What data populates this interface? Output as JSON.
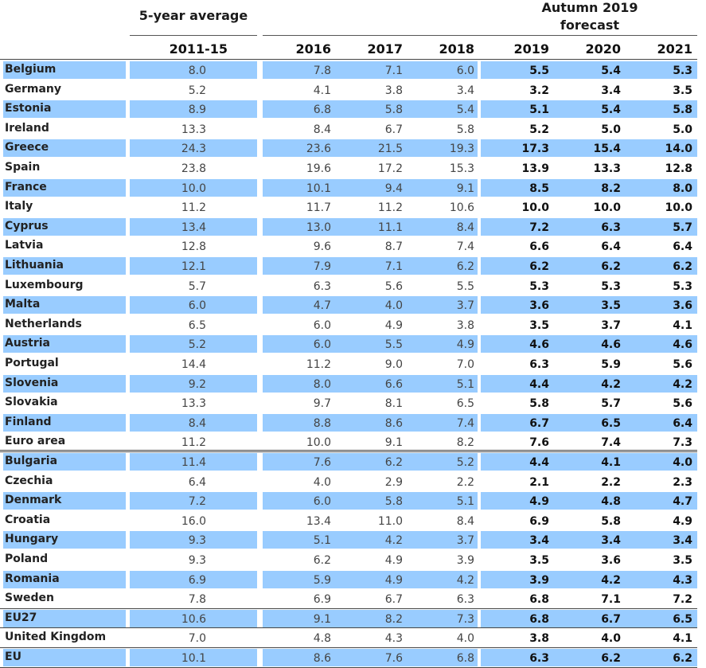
{
  "headers": {
    "five_year": "5-year average",
    "forecast_line1": "Autumn 2019",
    "forecast_line2": "forecast",
    "years": [
      "2011-15",
      "2016",
      "2017",
      "2018",
      "2019",
      "2020",
      "2021"
    ]
  },
  "rows": [
    {
      "country": "Belgium",
      "values": [
        "8.0",
        "7.8",
        "7.1",
        "6.0",
        "5.5",
        "5.4",
        "5.3"
      ],
      "shaded": true
    },
    {
      "country": "Germany",
      "values": [
        "5.2",
        "4.1",
        "3.8",
        "3.4",
        "3.2",
        "3.4",
        "3.5"
      ],
      "shaded": false
    },
    {
      "country": "Estonia",
      "values": [
        "8.9",
        "6.8",
        "5.8",
        "5.4",
        "5.1",
        "5.4",
        "5.8"
      ],
      "shaded": true
    },
    {
      "country": "Ireland",
      "values": [
        "13.3",
        "8.4",
        "6.7",
        "5.8",
        "5.2",
        "5.0",
        "5.0"
      ],
      "shaded": false
    },
    {
      "country": "Greece",
      "values": [
        "24.3",
        "23.6",
        "21.5",
        "19.3",
        "17.3",
        "15.4",
        "14.0"
      ],
      "shaded": true
    },
    {
      "country": "Spain",
      "values": [
        "23.8",
        "19.6",
        "17.2",
        "15.3",
        "13.9",
        "13.3",
        "12.8"
      ],
      "shaded": false
    },
    {
      "country": "France",
      "values": [
        "10.0",
        "10.1",
        "9.4",
        "9.1",
        "8.5",
        "8.2",
        "8.0"
      ],
      "shaded": true
    },
    {
      "country": "Italy",
      "values": [
        "11.2",
        "11.7",
        "11.2",
        "10.6",
        "10.0",
        "10.0",
        "10.0"
      ],
      "shaded": false
    },
    {
      "country": "Cyprus",
      "values": [
        "13.4",
        "13.0",
        "11.1",
        "8.4",
        "7.2",
        "6.3",
        "5.7"
      ],
      "shaded": true
    },
    {
      "country": "Latvia",
      "values": [
        "12.8",
        "9.6",
        "8.7",
        "7.4",
        "6.6",
        "6.4",
        "6.4"
      ],
      "shaded": false
    },
    {
      "country": "Lithuania",
      "values": [
        "12.1",
        "7.9",
        "7.1",
        "6.2",
        "6.2",
        "6.2",
        "6.2"
      ],
      "shaded": true
    },
    {
      "country": "Luxembourg",
      "values": [
        "5.7",
        "6.3",
        "5.6",
        "5.5",
        "5.3",
        "5.3",
        "5.3"
      ],
      "shaded": false
    },
    {
      "country": "Malta",
      "values": [
        "6.0",
        "4.7",
        "4.0",
        "3.7",
        "3.6",
        "3.5",
        "3.6"
      ],
      "shaded": true
    },
    {
      "country": "Netherlands",
      "values": [
        "6.5",
        "6.0",
        "4.9",
        "3.8",
        "3.5",
        "3.7",
        "4.1"
      ],
      "shaded": false
    },
    {
      "country": "Austria",
      "values": [
        "5.2",
        "6.0",
        "5.5",
        "4.9",
        "4.6",
        "4.6",
        "4.6"
      ],
      "shaded": true
    },
    {
      "country": "Portugal",
      "values": [
        "14.4",
        "11.2",
        "9.0",
        "7.0",
        "6.3",
        "5.9",
        "5.6"
      ],
      "shaded": false
    },
    {
      "country": "Slovenia",
      "values": [
        "9.2",
        "8.0",
        "6.6",
        "5.1",
        "4.4",
        "4.2",
        "4.2"
      ],
      "shaded": true
    },
    {
      "country": "Slovakia",
      "values": [
        "13.3",
        "9.7",
        "8.1",
        "6.5",
        "5.8",
        "5.7",
        "5.6"
      ],
      "shaded": false
    },
    {
      "country": "Finland",
      "values": [
        "8.4",
        "8.8",
        "8.6",
        "7.4",
        "6.7",
        "6.5",
        "6.4"
      ],
      "shaded": true
    },
    {
      "country": "Euro area",
      "values": [
        "11.2",
        "10.0",
        "9.1",
        "8.2",
        "7.6",
        "7.4",
        "7.3"
      ],
      "shaded": false
    },
    {
      "country": "Bulgaria",
      "values": [
        "11.4",
        "7.6",
        "6.2",
        "5.2",
        "4.4",
        "4.1",
        "4.0"
      ],
      "shaded": true
    },
    {
      "country": "Czechia",
      "values": [
        "6.4",
        "4.0",
        "2.9",
        "2.2",
        "2.1",
        "2.2",
        "2.3"
      ],
      "shaded": false
    },
    {
      "country": "Denmark",
      "values": [
        "7.2",
        "6.0",
        "5.8",
        "5.1",
        "4.9",
        "4.8",
        "4.7"
      ],
      "shaded": true
    },
    {
      "country": "Croatia",
      "values": [
        "16.0",
        "13.4",
        "11.0",
        "8.4",
        "6.9",
        "5.8",
        "4.9"
      ],
      "shaded": false
    },
    {
      "country": "Hungary",
      "values": [
        "9.3",
        "5.1",
        "4.2",
        "3.7",
        "3.4",
        "3.4",
        "3.4"
      ],
      "shaded": true
    },
    {
      "country": "Poland",
      "values": [
        "9.3",
        "6.2",
        "4.9",
        "3.9",
        "3.5",
        "3.6",
        "3.5"
      ],
      "shaded": false
    },
    {
      "country": "Romania",
      "values": [
        "6.9",
        "5.9",
        "4.9",
        "4.2",
        "3.9",
        "4.2",
        "4.3"
      ],
      "shaded": true
    },
    {
      "country": "Sweden",
      "values": [
        "7.8",
        "6.9",
        "6.7",
        "6.3",
        "6.8",
        "7.1",
        "7.2"
      ],
      "shaded": false
    },
    {
      "country": "EU27",
      "values": [
        "10.6",
        "9.1",
        "8.2",
        "7.3",
        "6.8",
        "6.7",
        "6.5"
      ],
      "shaded": true
    },
    {
      "country": "United Kingdom",
      "values": [
        "7.0",
        "4.8",
        "4.3",
        "4.0",
        "3.8",
        "4.0",
        "4.1"
      ],
      "shaded": false
    },
    {
      "country": "EU",
      "values": [
        "10.1",
        "8.6",
        "7.6",
        "6.8",
        "6.3",
        "6.2",
        "6.2"
      ],
      "shaded": true
    }
  ],
  "colors": {
    "row_shade": "#99ccff",
    "rule": "#555555"
  }
}
